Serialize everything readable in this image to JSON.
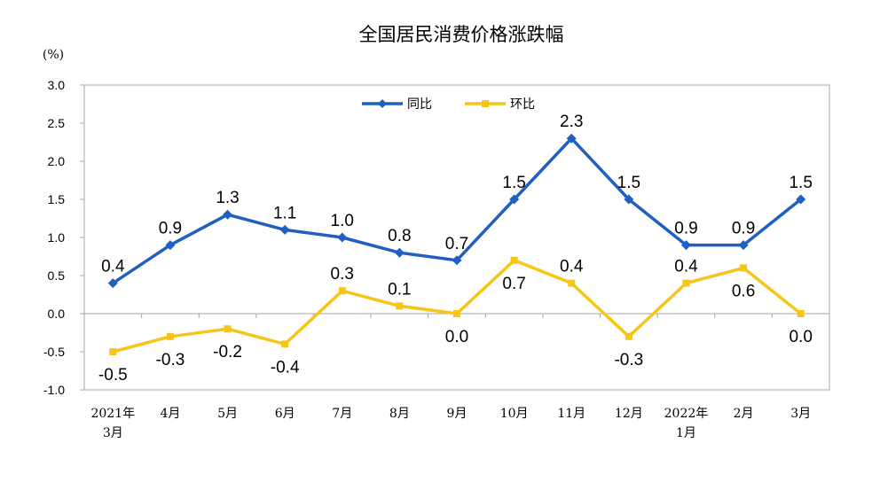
{
  "chart_data": {
    "type": "line",
    "title": "全国居民消费价格涨跌幅",
    "ylabel": "(%)",
    "xlabel": "",
    "ylim": [
      -1.0,
      3.0
    ],
    "yticks": [
      "3.0",
      "2.5",
      "2.0",
      "1.5",
      "1.0",
      "0.5",
      "0.0",
      "-0.5",
      "-1.0"
    ],
    "ytick_values": [
      3.0,
      2.5,
      2.0,
      1.5,
      1.0,
      0.5,
      0.0,
      -0.5,
      -1.0
    ],
    "categories": [
      [
        "2021年",
        "3月"
      ],
      [
        "4月"
      ],
      [
        "5月"
      ],
      [
        "6月"
      ],
      [
        "7月"
      ],
      [
        "8月"
      ],
      [
        "9月"
      ],
      [
        "10月"
      ],
      [
        "11月"
      ],
      [
        "12月"
      ],
      [
        "2022年",
        "1月"
      ],
      [
        "2月"
      ],
      [
        "3月"
      ]
    ],
    "grid": false,
    "legend_position": "top-center",
    "series": [
      {
        "name": "同比",
        "color": "#1f5fc2",
        "marker": "diamond",
        "values": [
          0.4,
          0.9,
          1.3,
          1.1,
          1.0,
          0.8,
          0.7,
          1.5,
          2.3,
          1.5,
          0.9,
          0.9,
          1.5
        ],
        "labels": [
          "0.4",
          "0.9",
          "1.3",
          "1.1",
          "1.0",
          "0.8",
          "0.7",
          "1.5",
          "2.3",
          "1.5",
          "0.9",
          "0.9",
          "1.5"
        ]
      },
      {
        "name": "环比",
        "color": "#f5c518",
        "marker": "square",
        "values": [
          -0.5,
          -0.3,
          -0.2,
          -0.4,
          0.3,
          0.1,
          0.0,
          0.7,
          0.4,
          -0.3,
          0.4,
          0.6,
          0.0
        ],
        "labels": [
          "-0.5",
          "-0.3",
          "-0.2",
          "-0.4",
          "0.3",
          "0.1",
          "0.0",
          "0.7",
          "0.4",
          "-0.3",
          "0.4",
          "0.6",
          "0.0"
        ]
      }
    ]
  }
}
